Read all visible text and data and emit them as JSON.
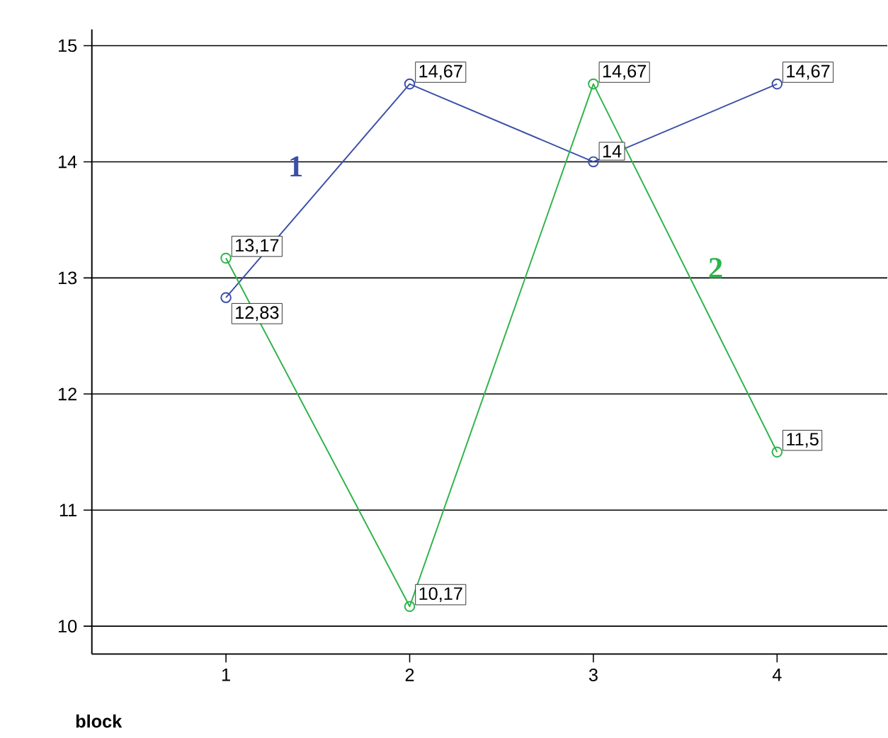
{
  "chart_data": {
    "type": "line",
    "xlabel": "block",
    "x": [
      1,
      2,
      3,
      4
    ],
    "series": [
      {
        "name": "1",
        "color": "#3a4fa8",
        "values": [
          12.83,
          14.67,
          14,
          14.67
        ],
        "value_labels": [
          "12,83",
          "14,67",
          "14",
          "14,67"
        ]
      },
      {
        "name": "2",
        "color": "#2eb34a",
        "values": [
          13.17,
          10.17,
          14.67,
          11.5
        ],
        "value_labels": [
          "13,17",
          "10,17",
          "14,67",
          "11,5"
        ]
      }
    ],
    "xlim": [
      0.27,
      4.6
    ],
    "ylim": [
      9.76,
      15.14
    ],
    "xticks": [
      1,
      2,
      3,
      4
    ],
    "yticks": [
      10,
      11,
      12,
      13,
      14,
      15
    ],
    "grid": "y",
    "legend": false,
    "marker": "circle",
    "line_style": "solid"
  }
}
